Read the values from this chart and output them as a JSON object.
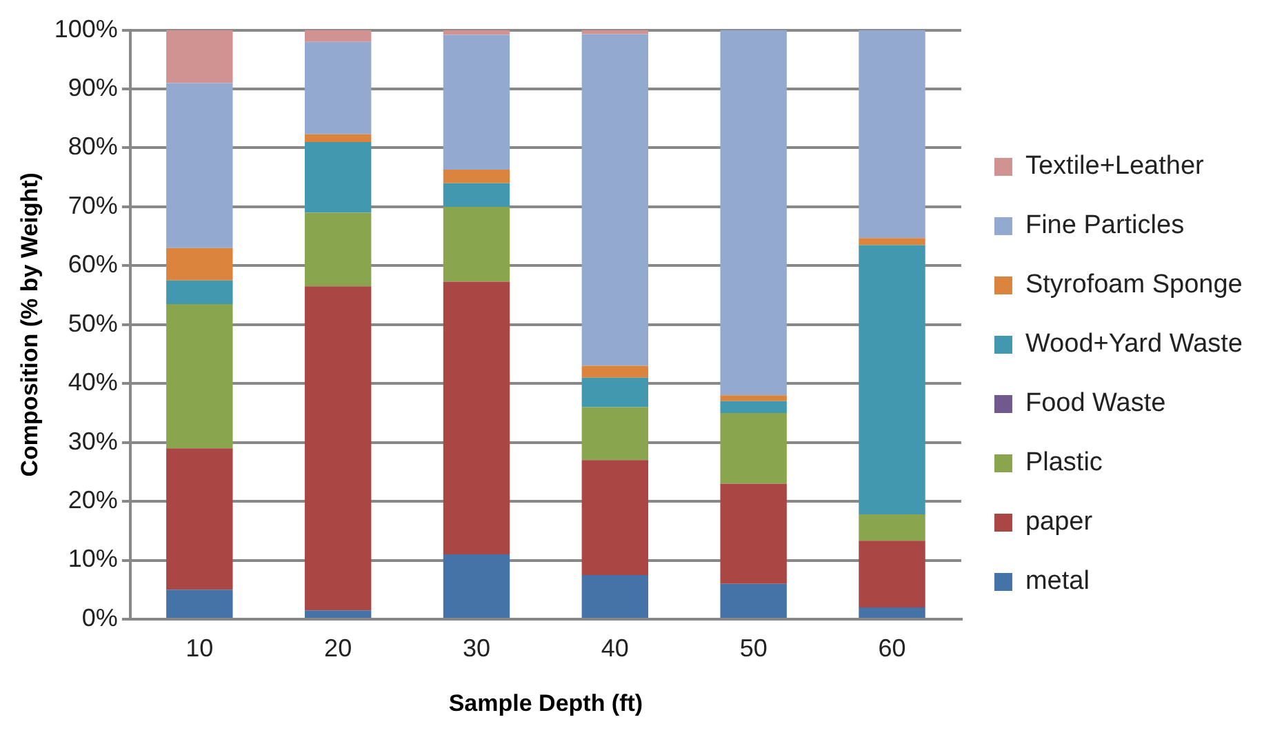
{
  "chart_data": {
    "type": "bar",
    "stacked": true,
    "xlabel": "Sample Depth (ft)",
    "ylabel": "Composition (% by Weight)",
    "categories": [
      "10",
      "20",
      "30",
      "40",
      "50",
      "60"
    ],
    "ylim": [
      0,
      100
    ],
    "yticks": [
      {
        "value": 0,
        "label": "0%"
      },
      {
        "value": 10,
        "label": "10%"
      },
      {
        "value": 20,
        "label": "20%"
      },
      {
        "value": 30,
        "label": "30%"
      },
      {
        "value": 40,
        "label": "40%"
      },
      {
        "value": 50,
        "label": "50%"
      },
      {
        "value": 60,
        "label": "60%"
      },
      {
        "value": 70,
        "label": "70%"
      },
      {
        "value": 80,
        "label": "80%"
      },
      {
        "value": 90,
        "label": "90%"
      },
      {
        "value": 100,
        "label": "100%"
      }
    ],
    "grid": "y",
    "legend": "right",
    "series": [
      {
        "name": "metal",
        "color": "#4572a7",
        "values": [
          5,
          1.5,
          11,
          7.5,
          6,
          2
        ]
      },
      {
        "name": "paper",
        "color": "#aa4643",
        "values": [
          24,
          55,
          46.3,
          19.5,
          17,
          11.3
        ]
      },
      {
        "name": "Plastic",
        "color": "#89a54e",
        "values": [
          24.5,
          12.5,
          12.7,
          9,
          12,
          4.5
        ]
      },
      {
        "name": "Food Waste",
        "color": "#71588f",
        "values": [
          0,
          0,
          0,
          0,
          0,
          0
        ]
      },
      {
        "name": "Wood+Yard Waste",
        "color": "#4198af",
        "values": [
          4,
          12,
          4,
          5,
          2,
          45.7
        ]
      },
      {
        "name": "Styrofoam Sponge",
        "color": "#db843d",
        "values": [
          5.5,
          1.3,
          2.3,
          2,
          1,
          1.2
        ]
      },
      {
        "name": "Fine Particles",
        "color": "#93a9cf",
        "values": [
          28,
          15.7,
          22.9,
          56.3,
          62,
          35.3
        ]
      },
      {
        "name": "Textile+Leather",
        "color": "#d19392",
        "values": [
          9,
          2,
          0.8,
          0.7,
          0,
          0
        ]
      }
    ]
  }
}
